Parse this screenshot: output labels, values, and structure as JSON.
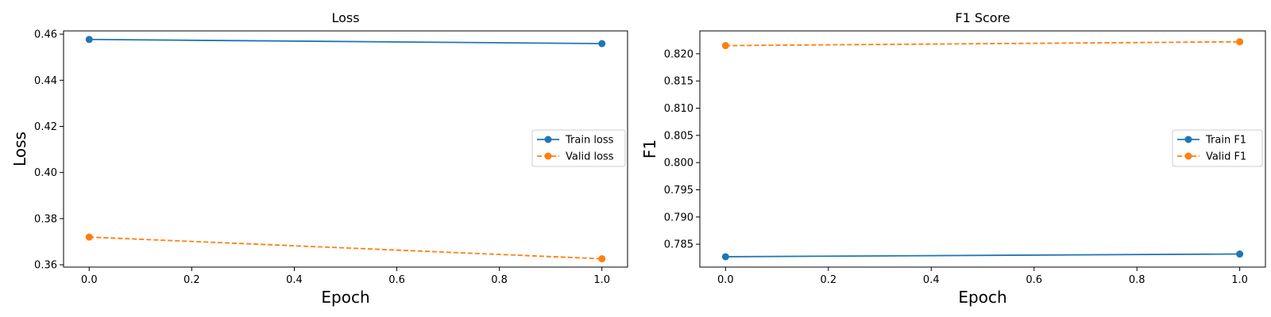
{
  "chart_data": [
    {
      "type": "line",
      "title": "Loss",
      "xlabel": "Epoch",
      "ylabel": "Loss",
      "x": [
        0.0,
        1.0
      ],
      "xlim": [
        -0.05,
        1.05
      ],
      "ylim": [
        0.359,
        0.4614
      ],
      "xticks": [
        0.0,
        0.2,
        0.4,
        0.6,
        0.8,
        1.0
      ],
      "xtick_labels": [
        "0.0",
        "0.2",
        "0.4",
        "0.6",
        "0.8",
        "1.0"
      ],
      "yticks": [
        0.36,
        0.38,
        0.4,
        0.42,
        0.44,
        0.46
      ],
      "ytick_labels": [
        "0.36",
        "0.38",
        "0.40",
        "0.42",
        "0.44",
        "0.46"
      ],
      "legend_position": "center-right",
      "grid": false,
      "series": [
        {
          "name": "Train loss",
          "values": [
            0.4577,
            0.4559
          ],
          "color": "#1f77b4",
          "linestyle": "solid",
          "marker": "circle"
        },
        {
          "name": "Valid loss",
          "values": [
            0.372,
            0.3626
          ],
          "color": "#ff7f0e",
          "linestyle": "dashed",
          "marker": "circle"
        }
      ]
    },
    {
      "type": "line",
      "title": "F1 Score",
      "xlabel": "Epoch",
      "ylabel": "F1",
      "x": [
        0.0,
        1.0
      ],
      "xlim": [
        -0.05,
        1.05
      ],
      "ylim": [
        0.7808,
        0.8242
      ],
      "xticks": [
        0.0,
        0.2,
        0.4,
        0.6,
        0.8,
        1.0
      ],
      "xtick_labels": [
        "0.0",
        "0.2",
        "0.4",
        "0.6",
        "0.8",
        "1.0"
      ],
      "yticks": [
        0.785,
        0.79,
        0.795,
        0.8,
        0.805,
        0.81,
        0.815,
        0.82
      ],
      "ytick_labels": [
        "0.785",
        "0.790",
        "0.795",
        "0.800",
        "0.805",
        "0.810",
        "0.815",
        "0.820"
      ],
      "legend_position": "center-right",
      "grid": false,
      "series": [
        {
          "name": "Train F1",
          "values": [
            0.7827,
            0.7832
          ],
          "color": "#1f77b4",
          "linestyle": "solid",
          "marker": "circle"
        },
        {
          "name": "Valid F1",
          "values": [
            0.8215,
            0.8222
          ],
          "color": "#ff7f0e",
          "linestyle": "dashed",
          "marker": "circle"
        }
      ]
    }
  ]
}
